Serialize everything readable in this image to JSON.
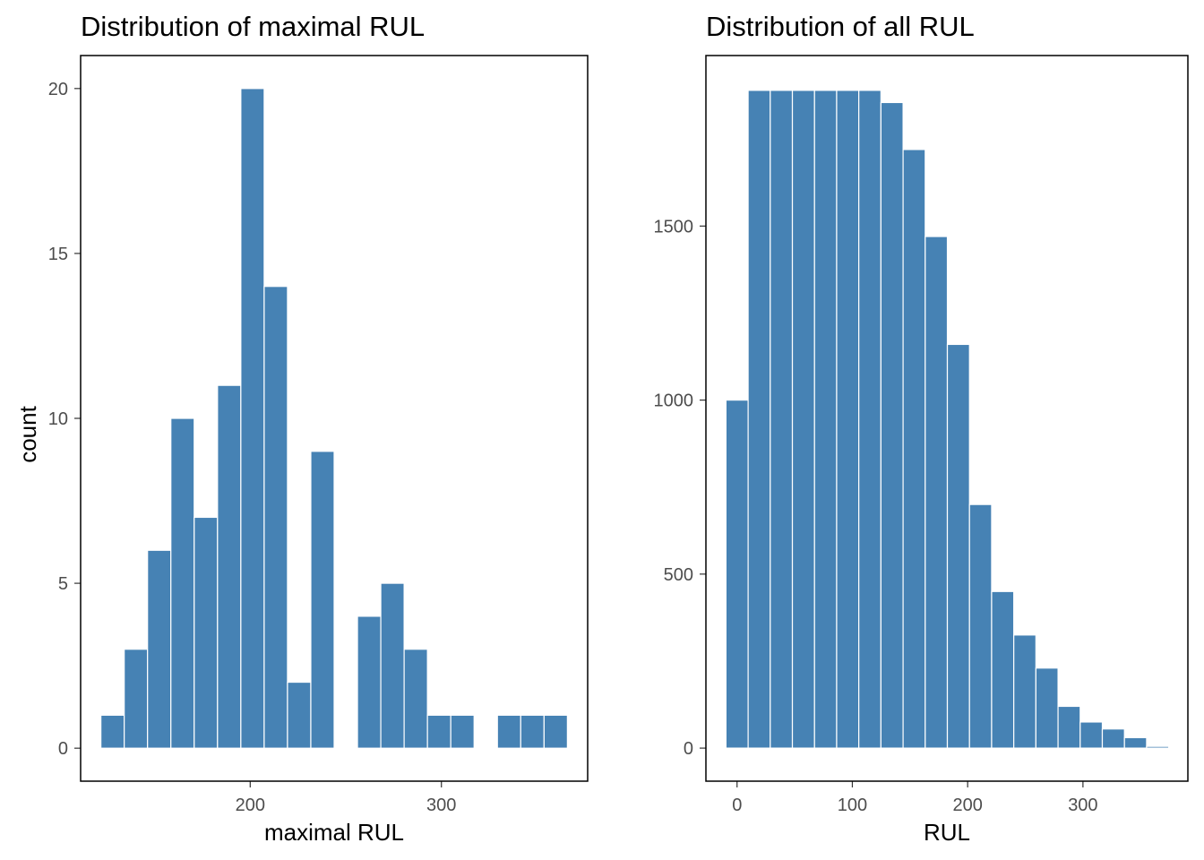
{
  "figure": {
    "background": "#ffffff",
    "bar_color": "#4682b4",
    "bar_outline": "#ffffff"
  },
  "chart_data": [
    {
      "type": "bar",
      "title": "Distribution of maximal RUL",
      "xlabel": "maximal RUL",
      "ylabel": "count",
      "binwidth": 12.2,
      "bin_centers": [
        128.0,
        140.2,
        152.4,
        164.6,
        176.8,
        189.0,
        201.2,
        213.4,
        225.6,
        237.8,
        250.0,
        262.2,
        274.4,
        286.6,
        298.8,
        311.0,
        323.2,
        335.4,
        347.6,
        359.8
      ],
      "values": [
        1,
        3,
        6,
        10,
        7,
        11,
        20,
        14,
        2,
        9,
        0,
        4,
        5,
        3,
        1,
        1,
        0,
        1,
        1,
        1
      ],
      "xlim": [
        111.3,
        376.5
      ],
      "ylim": [
        -1.0,
        21.0
      ],
      "xticks": [
        200,
        300
      ],
      "yticks": [
        0,
        5,
        10,
        15,
        20
      ],
      "grid": false
    },
    {
      "type": "bar",
      "title": "Distribution of all RUL",
      "xlabel": "RUL",
      "ylabel": "",
      "binwidth": 19.2,
      "bin_centers": [
        0.0,
        19.2,
        38.4,
        57.6,
        76.8,
        96.0,
        115.2,
        134.4,
        153.6,
        172.8,
        192.0,
        211.2,
        230.4,
        249.6,
        268.8,
        288.0,
        307.2,
        326.4,
        345.6,
        364.8
      ],
      "values": [
        1000,
        1890,
        1890,
        1890,
        1890,
        1890,
        1890,
        1855,
        1720,
        1470,
        1160,
        700,
        450,
        325,
        230,
        120,
        75,
        55,
        30,
        5
      ],
      "xlim": [
        -27.0,
        391.0
      ],
      "ylim": [
        -95.0,
        1990.0
      ],
      "xticks": [
        0,
        100,
        200,
        300
      ],
      "yticks": [
        0,
        500,
        1000,
        1500
      ],
      "grid": false
    }
  ]
}
